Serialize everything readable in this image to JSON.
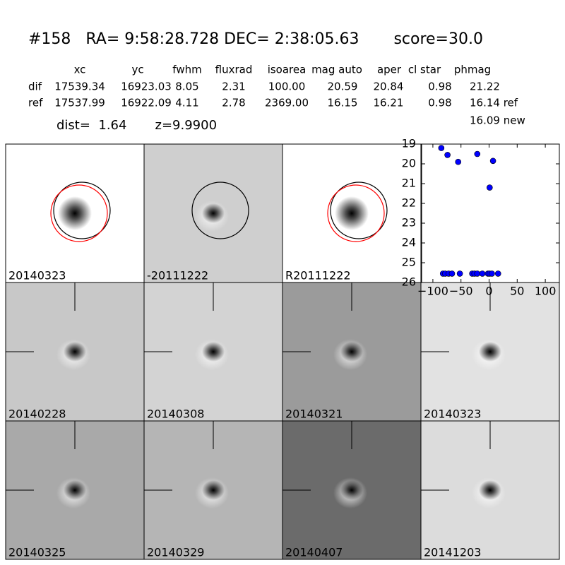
{
  "header": {
    "title": "#158   RA= 9:58:28.728 DEC= 2:38:05.63       score=30.0",
    "columns": [
      "xc",
      "yc",
      "fwhm",
      "fluxrad",
      "isoarea",
      "mag auto",
      "aper",
      "cl star",
      "phmag"
    ],
    "rows": [
      [
        "dif",
        "17539.34",
        "16923.03",
        "8.05",
        "2.31",
        "100.00",
        "20.59",
        "20.84",
        "0.98",
        "21.22"
      ],
      [
        "ref",
        "17537.99",
        "16922.09",
        "4.11",
        "2.78",
        "2369.00",
        "16.15",
        "16.21",
        "0.98",
        "16.14 ref"
      ]
    ],
    "dist": "dist=  1.64       z=9.9900",
    "extra": "16.09 new"
  },
  "panels": [
    {
      "label": "20140323",
      "bg": "#ffffff",
      "circles": true
    },
    {
      "label": "-20111222",
      "bg": "#cfcfcf",
      "circles": true
    },
    {
      "label": "R20111222",
      "bg": "#ffffff",
      "circles": true
    },
    {
      "label": "20140228",
      "bg": "#c8c8c8"
    },
    {
      "label": "20140308",
      "bg": "#d3d3d3"
    },
    {
      "label": "20140321",
      "bg": "#9b9b9b"
    },
    {
      "label": "20140323",
      "bg": "#e2e2e2",
      "label_color": "#ff0000"
    },
    {
      "label": "20140325",
      "bg": "#a9a9a9"
    },
    {
      "label": "20140329",
      "bg": "#b5b5b5"
    },
    {
      "label": "20140407",
      "bg": "#6b6b6b"
    },
    {
      "label": "20141203",
      "bg": "#dcdcdc"
    }
  ],
  "chart_data": {
    "type": "scatter",
    "color": "#0000ff",
    "x": [
      -85,
      -74,
      -55,
      -21,
      7,
      1,
      -82,
      -78,
      -72,
      -66,
      -52,
      -30,
      -26,
      -21,
      -12,
      -2,
      1,
      5,
      16
    ],
    "values": [
      19.2,
      19.55,
      19.9,
      19.5,
      19.85,
      21.2,
      25.55,
      25.55,
      25.55,
      25.55,
      25.55,
      25.55,
      25.55,
      25.55,
      25.55,
      25.55,
      25.55,
      25.55,
      25.55
    ],
    "xlim": [
      -120,
      125
    ],
    "xticks": [
      {
        "value": -100,
        "label": "−100"
      },
      {
        "value": -50,
        "label": "−50"
      },
      0,
      50,
      100
    ],
    "ylim": [
      26,
      19
    ],
    "inverted": true,
    "yticks": [
      19,
      20,
      21,
      22,
      23,
      24,
      25,
      26
    ]
  }
}
